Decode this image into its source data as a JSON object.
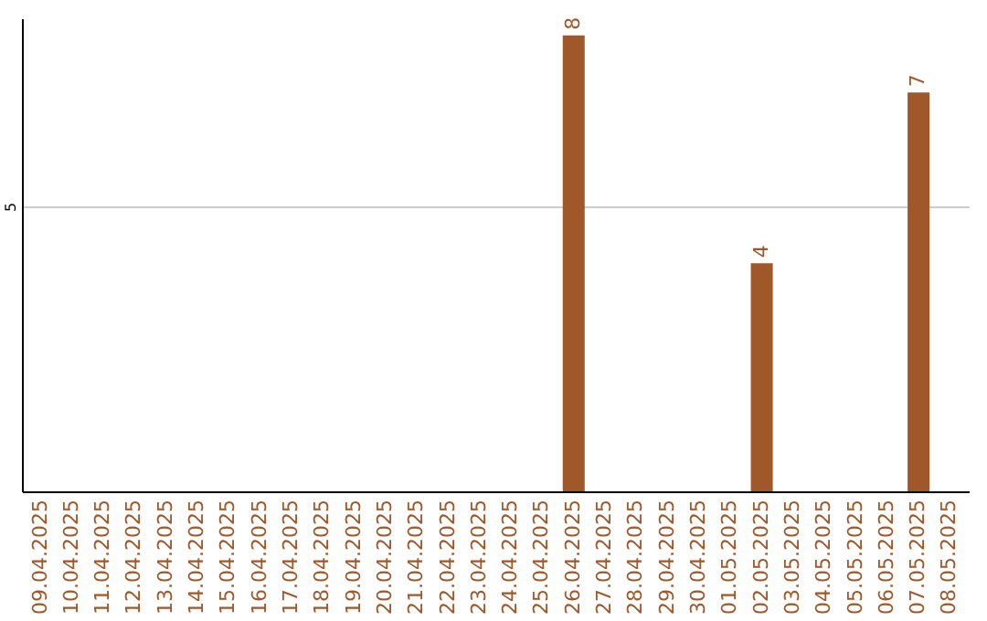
{
  "chart_data": {
    "type": "bar",
    "categories": [
      "09.04.2025",
      "10.04.2025",
      "11.04.2025",
      "12.04.2025",
      "13.04.2025",
      "14.04.2025",
      "15.04.2025",
      "16.04.2025",
      "17.04.2025",
      "18.04.2025",
      "19.04.2025",
      "20.04.2025",
      "21.04.2025",
      "22.04.2025",
      "23.04.2025",
      "24.04.2025",
      "25.04.2025",
      "26.04.2025",
      "27.04.2025",
      "28.04.2025",
      "29.04.2025",
      "30.04.2025",
      "01.05.2025",
      "02.05.2025",
      "03.05.2025",
      "04.05.2025",
      "05.05.2025",
      "06.05.2025",
      "07.05.2025",
      "08.05.2025"
    ],
    "values": [
      null,
      null,
      null,
      null,
      null,
      null,
      null,
      null,
      null,
      null,
      null,
      null,
      null,
      null,
      null,
      null,
      null,
      8,
      null,
      null,
      null,
      null,
      null,
      4,
      null,
      null,
      null,
      null,
      7,
      null
    ],
    "value_labels": [
      null,
      null,
      null,
      null,
      null,
      null,
      null,
      null,
      null,
      null,
      null,
      null,
      null,
      null,
      null,
      null,
      null,
      "8",
      null,
      null,
      null,
      null,
      null,
      "4",
      null,
      null,
      null,
      null,
      "7",
      null
    ],
    "color": "#a0582a",
    "ylim": [
      0,
      8.3
    ],
    "yticks": [
      5
    ],
    "grid": "y"
  }
}
